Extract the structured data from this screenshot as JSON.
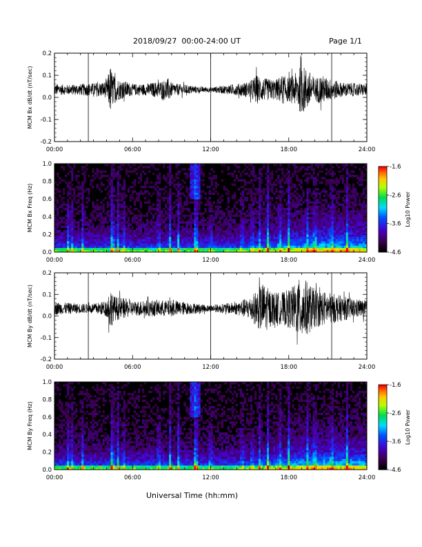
{
  "header": {
    "title": "2018/09/27  00:00-24:00 UT",
    "page": "Page 1/1"
  },
  "x_axis_title": "Universal Time (hh:mm)",
  "chart_data": [
    {
      "type": "line",
      "ylabel": "MCM Bx dB/dt (nT/sec)",
      "xlim": [
        0,
        24
      ],
      "ylim": [
        -0.2,
        0.2
      ],
      "x_ticks": [
        "00:00",
        "06:00",
        "12:00",
        "18:00",
        "24:00"
      ],
      "y_ticks": [
        "-0.2",
        "-0.1",
        "0.0",
        "0.1",
        "0.2"
      ],
      "y_tick_values": [
        -0.2,
        -0.1,
        0.0,
        0.1,
        0.2
      ],
      "baseline": 0.035,
      "vertical_markers_hours": [
        2.6,
        12.0,
        21.3
      ],
      "envelope": {
        "hours": [
          0,
          1,
          2,
          3,
          4,
          4.3,
          4.5,
          5,
          5.5,
          6,
          7,
          8,
          8.8,
          9,
          10,
          11,
          12,
          13,
          14,
          15,
          15.5,
          16,
          17,
          17.5,
          18,
          18.5,
          19,
          19.5,
          20,
          20.5,
          21,
          21.5,
          22,
          23,
          24
        ],
        "amplitude": [
          0.035,
          0.03,
          0.035,
          0.04,
          0.05,
          0.15,
          0.09,
          0.06,
          0.05,
          0.035,
          0.035,
          0.05,
          0.07,
          0.04,
          0.03,
          0.02,
          0.015,
          0.025,
          0.035,
          0.05,
          0.09,
          0.07,
          0.06,
          0.09,
          0.07,
          0.1,
          0.15,
          0.12,
          0.07,
          0.09,
          0.07,
          0.06,
          0.045,
          0.04,
          0.035
        ]
      }
    },
    {
      "type": "heatmap",
      "ylabel": "MCM Bx Freq (Hz)",
      "xlim": [
        0,
        24
      ],
      "ylim": [
        0,
        1.0
      ],
      "x_ticks": [
        "00:00",
        "06:00",
        "12:00",
        "18:00",
        "24:00"
      ],
      "y_ticks": [
        "0.0",
        "0.2",
        "0.4",
        "0.6",
        "0.8",
        "1.0"
      ],
      "y_tick_values": [
        0,
        0.2,
        0.4,
        0.6,
        0.8,
        1.0
      ],
      "colorbar": {
        "label": "Log10 Power",
        "min": -4.6,
        "max": -1.6,
        "ticks": [
          "-1.6",
          "-2.6",
          "-3.6",
          "-4.6"
        ],
        "tick_values": [
          -1.6,
          -2.6,
          -3.6,
          -4.6
        ]
      },
      "broadband_events_hours": [
        1.0,
        1.3,
        2.2,
        4.4,
        4.5,
        4.9,
        5.3,
        8.0,
        8.9,
        9.5,
        10.8,
        11.0,
        12.0,
        14.4,
        15.2,
        15.8,
        16.4,
        17.3,
        18.0,
        19.4,
        20.0,
        21.3,
        22.5
      ],
      "high_power_patch": {
        "hours": [
          10.4,
          11.2
        ],
        "freq": [
          0.6,
          1.0
        ]
      }
    },
    {
      "type": "line",
      "ylabel": "MCM By dB/dt (nT/sec)",
      "xlim": [
        0,
        24
      ],
      "ylim": [
        -0.2,
        0.2
      ],
      "x_ticks": [
        "00:00",
        "06:00",
        "12:00",
        "18:00",
        "24:00"
      ],
      "y_ticks": [
        "-0.2",
        "-0.1",
        "0.0",
        "0.1",
        "0.2"
      ],
      "y_tick_values": [
        -0.2,
        -0.1,
        0.0,
        0.1,
        0.2
      ],
      "baseline": 0.035,
      "vertical_markers_hours": [
        2.6,
        12.0,
        21.3
      ],
      "envelope": {
        "hours": [
          0,
          1,
          2,
          3,
          4,
          4.3,
          4.5,
          5,
          5.5,
          6,
          7,
          8,
          9,
          10,
          11,
          12,
          13,
          14,
          15,
          15.5,
          16,
          16.5,
          17,
          17.5,
          18,
          18.5,
          19,
          19.5,
          20,
          21,
          22,
          23,
          24
        ],
        "amplitude": [
          0.04,
          0.035,
          0.03,
          0.03,
          0.05,
          0.14,
          0.08,
          0.07,
          0.06,
          0.045,
          0.05,
          0.05,
          0.05,
          0.04,
          0.03,
          0.02,
          0.03,
          0.04,
          0.07,
          0.11,
          0.16,
          0.12,
          0.1,
          0.1,
          0.12,
          0.15,
          0.2,
          0.16,
          0.12,
          0.1,
          0.08,
          0.06,
          0.05
        ]
      }
    },
    {
      "type": "heatmap",
      "ylabel": "MCM By Freq (Hz)",
      "xlim": [
        0,
        24
      ],
      "ylim": [
        0,
        1.0
      ],
      "x_ticks": [
        "00:00",
        "06:00",
        "12:00",
        "18:00",
        "24:00"
      ],
      "y_ticks": [
        "0.0",
        "0.2",
        "0.4",
        "0.6",
        "0.8",
        "1.0"
      ],
      "y_tick_values": [
        0,
        0.2,
        0.4,
        0.6,
        0.8,
        1.0
      ],
      "colorbar": {
        "label": "Log10 Power",
        "min": -4.6,
        "max": -1.6,
        "ticks": [
          "-1.6",
          "-2.6",
          "-3.6",
          "-4.6"
        ],
        "tick_values": [
          -1.6,
          -2.6,
          -3.6,
          -4.6
        ]
      },
      "broadband_events_hours": [
        1.0,
        1.3,
        2.2,
        4.4,
        4.5,
        4.9,
        5.3,
        8.0,
        8.9,
        9.5,
        10.8,
        11.0,
        12.0,
        14.4,
        15.2,
        15.8,
        16.4,
        17.3,
        18.0,
        19.4,
        20.0,
        21.3,
        22.5
      ],
      "high_power_patch": {
        "hours": [
          10.4,
          11.2
        ],
        "freq": [
          0.6,
          1.0
        ]
      }
    }
  ]
}
